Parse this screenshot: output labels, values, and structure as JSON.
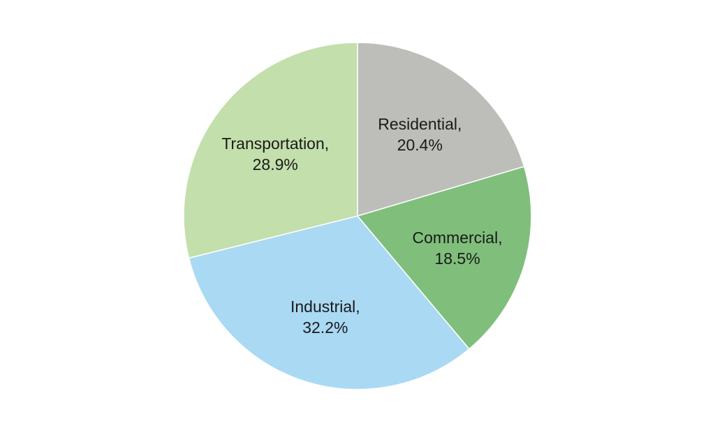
{
  "chart_data": {
    "type": "pie",
    "title": "",
    "start_angle_deg": 0,
    "direction": "clockwise",
    "slices": [
      {
        "label": "Residential,",
        "value": 20.4,
        "value_text": "20.4%",
        "color": "#bdbdba"
      },
      {
        "label": "Commercial,",
        "value": 18.5,
        "value_text": "18.5%",
        "color": "#7fbf7b"
      },
      {
        "label": "Industrial,",
        "value": 32.2,
        "value_text": "32.2%",
        "color": "#aad9f3"
      },
      {
        "label": "Transportation,",
        "value": 28.9,
        "value_text": "28.9%",
        "color": "#c3dfac"
      }
    ],
    "legend": "none",
    "data_labels": "inside"
  }
}
